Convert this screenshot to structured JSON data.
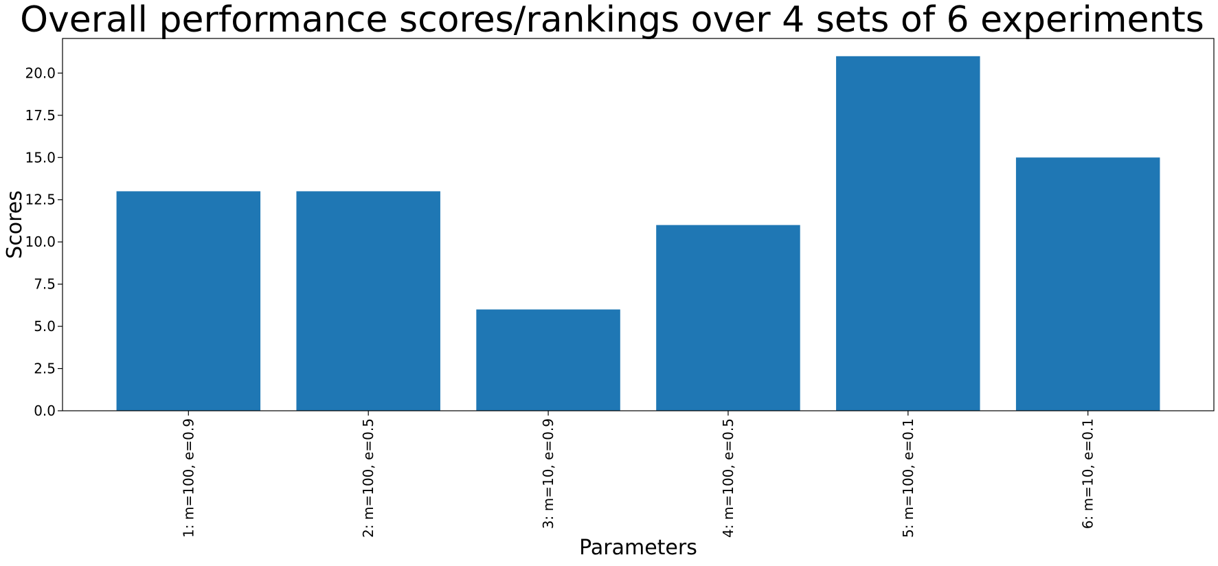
{
  "chart_data": {
    "type": "bar",
    "title": "Overall performance scores/rankings over 4 sets of 6 experiments",
    "xlabel": "Parameters",
    "ylabel": "Scores",
    "categories": [
      "1: m=100, e=0.9",
      "2: m=100, e=0.5",
      "3: m=10, e=0.9",
      "4: m=100, e=0.5",
      "5: m=100, e=0.1",
      "6: m=10, e=0.1"
    ],
    "values": [
      13,
      13,
      6,
      11,
      21,
      15
    ],
    "ylim": [
      0,
      22.05
    ],
    "yticks": [
      0.0,
      2.5,
      5.0,
      7.5,
      10.0,
      12.5,
      15.0,
      17.5,
      20.0
    ],
    "ytick_labels": [
      "0.0",
      "2.5",
      "5.0",
      "7.5",
      "10.0",
      "12.5",
      "15.0",
      "17.5",
      "20.0"
    ],
    "bar_color": "#1f77b4",
    "grid": false,
    "legend": "none"
  }
}
